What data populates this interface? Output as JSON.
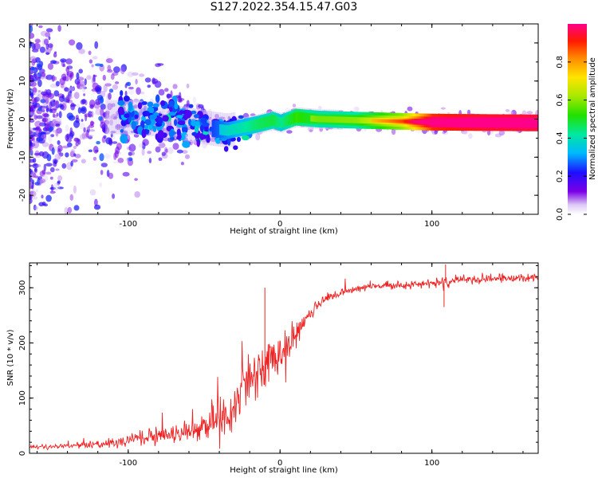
{
  "title": "S127.2022.354.15.47.G03",
  "colors": {
    "snr_line": "#ee2222",
    "frame": "#000000",
    "background": "#ffffff"
  },
  "chart_data": [
    {
      "type": "heatmap",
      "xlabel": "Height of straight line (km)",
      "ylabel": "Frequency (Hz)",
      "xlim": [
        -165,
        170
      ],
      "ylim": [
        -25,
        25
      ],
      "xticks": [
        -100,
        0,
        100
      ],
      "yticks": [
        -20,
        -10,
        0,
        10,
        20
      ],
      "grid": false,
      "colorbar": {
        "label": "Normalized spectral amplitude",
        "range": [
          0.0,
          1.0
        ],
        "ticks": [
          0.0,
          0.2,
          0.4,
          0.6,
          0.8
        ],
        "colormap": "rainbow"
      },
      "ridge": {
        "x": [
          -100,
          -80,
          -60,
          -45,
          -35,
          -25,
          -15,
          -5,
          0,
          10,
          25,
          50,
          80,
          100,
          130,
          170
        ],
        "freq": [
          0.5,
          0.0,
          -1.5,
          -2.5,
          -3.0,
          -2.2,
          -1.3,
          -0.3,
          -1.0,
          0.5,
          0.0,
          -0.3,
          -0.6,
          -0.8,
          -0.9,
          -1.0
        ],
        "amplitude": [
          0.15,
          0.18,
          0.22,
          0.25,
          0.3,
          0.33,
          0.38,
          0.4,
          0.35,
          0.45,
          0.4,
          0.42,
          0.6,
          0.9,
          0.93,
          0.95
        ]
      }
    },
    {
      "type": "line",
      "xlabel": "Height of straight line (km)",
      "ylabel": "SNR (10 * v/v)",
      "xlim": [
        -165,
        170
      ],
      "ylim": [
        0,
        345
      ],
      "xticks": [
        -100,
        0,
        100
      ],
      "yticks": [
        0,
        100,
        200,
        300
      ],
      "grid": false,
      "series": [
        {
          "x": [
            -165,
            -150,
            -130,
            -110,
            -100,
            -90,
            -80,
            -70,
            -60,
            -50,
            -40,
            -35,
            -30,
            -25,
            -20,
            -15,
            -10,
            -5,
            0,
            5,
            10,
            15,
            20,
            25,
            30,
            40,
            50,
            60,
            70,
            80,
            90,
            100,
            105,
            108,
            110,
            115,
            120,
            130,
            140,
            150,
            160,
            170
          ],
          "values": [
            12,
            12,
            14,
            18,
            25,
            28,
            32,
            36,
            42,
            48,
            58,
            72,
            95,
            120,
            140,
            150,
            160,
            170,
            180,
            190,
            210,
            235,
            255,
            270,
            280,
            290,
            298,
            302,
            304,
            305,
            306,
            308,
            309,
            310,
            308,
            312,
            314,
            315,
            316,
            317,
            318,
            318
          ],
          "noise": [
            3,
            4,
            5,
            7,
            12,
            12,
            14,
            16,
            18,
            22,
            30,
            40,
            45,
            45,
            48,
            45,
            45,
            35,
            30,
            28,
            25,
            18,
            12,
            10,
            8,
            7,
            6,
            6,
            6,
            6,
            6,
            6,
            6,
            15,
            8,
            7,
            7,
            7,
            7,
            7,
            7,
            7
          ]
        }
      ],
      "annotations": [
        {
          "x": -10,
          "y": 300,
          "kind": "spike"
        },
        {
          "x": 108,
          "y": 265,
          "kind": "dip"
        },
        {
          "x": 109,
          "y": 342,
          "kind": "spike"
        }
      ]
    }
  ]
}
